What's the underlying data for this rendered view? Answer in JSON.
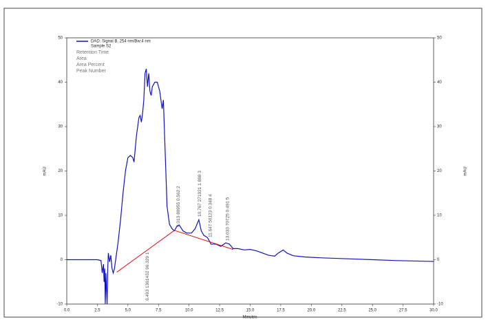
{
  "chart_data": {
    "type": "line",
    "xlabel": "Minutes",
    "ylabel": "mAU",
    "y2label": "mAU",
    "xlim": [
      0,
      30
    ],
    "ylim": [
      -10,
      50
    ],
    "y2lim": [
      -10,
      50
    ],
    "xticks": [
      {
        "value": 0,
        "label": "0.0"
      },
      2.5,
      {
        "value": 5,
        "label": "5.0"
      },
      7.5,
      {
        "value": 10,
        "label": "10.0"
      },
      12.5,
      {
        "value": 15,
        "label": "15.0"
      },
      17.5,
      {
        "value": 20,
        "label": "20.0"
      },
      22.5,
      {
        "value": 25,
        "label": "25.0"
      },
      27.5,
      {
        "value": 30,
        "label": "30.0"
      }
    ],
    "yticks": [
      -10,
      0,
      10,
      20,
      30,
      40,
      50
    ],
    "y2ticks": [
      -10,
      0,
      10,
      20,
      30,
      40,
      50
    ],
    "legend_subtitle": "Sample S2",
    "legend_fields": [
      "Retention Time",
      "Area",
      "Area Percent",
      "Peak Number"
    ],
    "series": [
      {
        "name": "DAD: Signal B, 254 nm/Bw:4 nm",
        "color": "#1010c0",
        "x": [
          0,
          2.5,
          2.8,
          2.9,
          3.0,
          3.05,
          3.1,
          3.15,
          3.2,
          3.3,
          3.35,
          3.4,
          3.5,
          3.6,
          3.7,
          3.8,
          3.9,
          4.0,
          4.2,
          4.4,
          4.6,
          4.8,
          5.0,
          5.2,
          5.4,
          5.5,
          5.7,
          5.9,
          6.0,
          6.1,
          6.2,
          6.3,
          6.4,
          6.5,
          6.6,
          6.7,
          6.8,
          6.9,
          7.0,
          7.2,
          7.4,
          7.6,
          7.8,
          7.9,
          8.0,
          8.1,
          8.2,
          8.4,
          8.6,
          8.8,
          9.0,
          9.2,
          9.5,
          9.8,
          10.2,
          10.5,
          10.8,
          11.0,
          11.2,
          11.5,
          11.8,
          12.2,
          12.6,
          13.0,
          13.3,
          13.6,
          14.0,
          14.5,
          15.0,
          15.5,
          16.0,
          16.5,
          17.0,
          17.3,
          17.7,
          18.0,
          18.5,
          19.5,
          21,
          23,
          25,
          27,
          30
        ],
        "values": [
          0,
          0,
          -0.2,
          -3,
          -1,
          -5,
          -2,
          -10,
          -3,
          -10,
          -2,
          1.5,
          -0.5,
          1,
          -2,
          -3,
          -2,
          0,
          4,
          9,
          15,
          20,
          23,
          23.5,
          23,
          22,
          28,
          32,
          32.5,
          31,
          33,
          36,
          42,
          43,
          39,
          42,
          38,
          37,
          39,
          40,
          40,
          38,
          34,
          36,
          28,
          20,
          12,
          8,
          7,
          6.5,
          7.5,
          7.8,
          6.5,
          6,
          6,
          7,
          9,
          6.5,
          5.5,
          5,
          3.5,
          3.5,
          3,
          3.8,
          3.5,
          2.5,
          2.5,
          2.2,
          2.3,
          2.0,
          1.5,
          1.0,
          0.8,
          1.5,
          2.2,
          1.5,
          0.9,
          0.6,
          0.4,
          0.2,
          0,
          -0.2,
          -0.4
        ]
      },
      {
        "color": "#e01010",
        "x": [
          4.1,
          8.8,
          13.6
        ],
        "values": [
          -2.8,
          6.6,
          2.3
        ]
      }
    ],
    "annotations": [
      {
        "x": 6.493,
        "text": "6.493 1361432 96.329 1"
      },
      {
        "x": 9.013,
        "text": "9.013 80955 0.562 2"
      },
      {
        "x": 10.767,
        "text": "10.767 271921 1.888 3"
      },
      {
        "x": 11.647,
        "text": "11.647 50123 0.348 4"
      },
      {
        "x": 13.033,
        "text": "13.033 70725 0.491 5"
      }
    ]
  }
}
